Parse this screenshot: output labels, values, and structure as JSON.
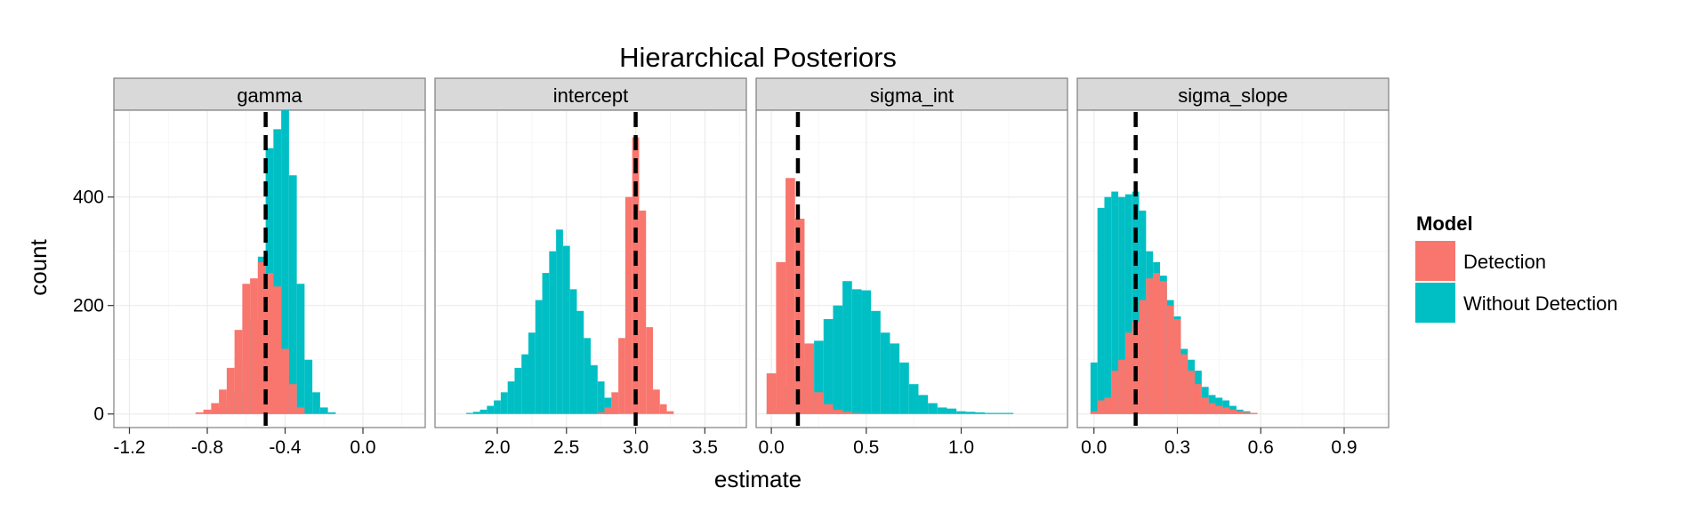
{
  "colors": {
    "detection": "#F8766D",
    "without_detection": "#00BFC4",
    "vline": "#000000",
    "strip": "#d9d9d9"
  },
  "chart_data": {
    "type": "bar",
    "subtype": "faceted-histogram",
    "title": "Hierarchical Posteriors",
    "xlabel": "estimate",
    "ylabel": "count",
    "ylim": [
      -25,
      560
    ],
    "yticks": [
      0,
      200,
      400
    ],
    "grid": true,
    "legend": {
      "title": "Model",
      "position": "right",
      "entries": [
        "Detection",
        "Without Detection"
      ]
    },
    "facets": [
      {
        "label": "gamma",
        "xlim": [
          -1.28,
          0.32
        ],
        "xticks": [
          -1.2,
          -0.8,
          -0.4,
          0.0
        ],
        "xtick_labels": [
          "-1.2",
          "-0.8",
          "-0.4",
          "0.0"
        ],
        "vline": -0.5,
        "series": [
          {
            "name": "Without Detection",
            "x": [
              -0.8,
              -0.76,
              -0.72,
              -0.68,
              -0.64,
              -0.6,
              -0.56,
              -0.52,
              -0.48,
              -0.44,
              -0.4,
              -0.36,
              -0.32,
              -0.28,
              -0.24,
              -0.2,
              -0.16
            ],
            "values": [
              2,
              5,
              10,
              25,
              40,
              95,
              175,
              290,
              490,
              525,
              560,
              440,
              240,
              100,
              40,
              12,
              3
            ]
          },
          {
            "name": "Detection",
            "x": [
              -0.84,
              -0.8,
              -0.76,
              -0.72,
              -0.68,
              -0.64,
              -0.6,
              -0.56,
              -0.52,
              -0.48,
              -0.44,
              -0.4,
              -0.36,
              -0.32
            ],
            "values": [
              3,
              8,
              20,
              45,
              85,
              155,
              240,
              250,
              280,
              260,
              235,
              120,
              55,
              12
            ]
          }
        ]
      },
      {
        "label": "intercept",
        "xlim": [
          1.55,
          3.8
        ],
        "xticks": [
          2.0,
          2.5,
          3.0,
          3.5
        ],
        "xtick_labels": [
          "2.0",
          "2.5",
          "3.0",
          "3.5"
        ],
        "vline": 3.0,
        "series": [
          {
            "name": "Without Detection",
            "x": [
              1.8,
              1.85,
              1.9,
              1.95,
              2.0,
              2.05,
              2.1,
              2.15,
              2.2,
              2.25,
              2.3,
              2.35,
              2.4,
              2.45,
              2.5,
              2.55,
              2.6,
              2.65,
              2.7,
              2.75,
              2.8,
              2.85
            ],
            "values": [
              2,
              4,
              8,
              15,
              25,
              40,
              60,
              85,
              110,
              150,
              210,
              260,
              300,
              340,
              310,
              230,
              190,
              140,
              90,
              60,
              30,
              12
            ]
          },
          {
            "name": "Detection",
            "x": [
              2.75,
              2.8,
              2.85,
              2.9,
              2.95,
              3.0,
              3.05,
              3.1,
              3.15,
              3.2,
              3.25
            ],
            "values": [
              3,
              12,
              40,
              140,
              400,
              510,
              375,
              160,
              45,
              18,
              5
            ]
          }
        ]
      },
      {
        "label": "sigma_int",
        "xlim": [
          -0.08,
          1.56
        ],
        "xticks": [
          0.0,
          0.5,
          1.0
        ],
        "xtick_labels": [
          "0.0",
          "0.5",
          "1.0"
        ],
        "vline": 0.14,
        "series": [
          {
            "name": "Without Detection",
            "x": [
              0.0,
              0.05,
              0.1,
              0.15,
              0.2,
              0.25,
              0.3,
              0.35,
              0.4,
              0.45,
              0.5,
              0.55,
              0.6,
              0.65,
              0.7,
              0.75,
              0.8,
              0.85,
              0.9,
              0.95,
              1.0,
              1.05,
              1.1,
              1.15,
              1.2,
              1.25
            ],
            "values": [
              5,
              20,
              50,
              85,
              110,
              135,
              175,
              200,
              245,
              230,
              228,
              190,
              150,
              130,
              95,
              55,
              35,
              20,
              12,
              10,
              5,
              4,
              3,
              2,
              2,
              2
            ]
          },
          {
            "name": "Detection",
            "x": [
              0.0,
              0.05,
              0.1,
              0.15,
              0.2,
              0.25,
              0.3,
              0.35,
              0.4,
              0.45,
              0.5,
              0.55
            ],
            "values": [
              75,
              280,
              435,
              360,
              130,
              40,
              18,
              8,
              4,
              2,
              1,
              1
            ]
          }
        ]
      },
      {
        "label": "sigma_slope",
        "xlim": [
          -0.06,
          1.06
        ],
        "xticks": [
          0.0,
          0.3,
          0.6,
          0.9
        ],
        "xtick_labels": [
          "0.0",
          "0.3",
          "0.6",
          "0.9"
        ],
        "vline": 0.15,
        "series": [
          {
            "name": "Without Detection",
            "x": [
              0.0,
              0.025,
              0.05,
              0.075,
              0.1,
              0.125,
              0.15,
              0.175,
              0.2,
              0.225,
              0.25,
              0.275,
              0.3,
              0.325,
              0.35,
              0.375,
              0.4,
              0.425,
              0.45,
              0.475,
              0.5,
              0.525,
              0.55,
              0.575
            ],
            "values": [
              95,
              380,
              400,
              410,
              400,
              405,
              410,
              375,
              300,
              280,
              255,
              210,
              180,
              120,
              100,
              80,
              50,
              35,
              30,
              25,
              15,
              8,
              5,
              2
            ]
          },
          {
            "name": "Detection",
            "x": [
              0.0,
              0.025,
              0.05,
              0.075,
              0.1,
              0.125,
              0.15,
              0.175,
              0.2,
              0.225,
              0.25,
              0.275,
              0.3,
              0.325,
              0.35,
              0.375,
              0.4,
              0.425,
              0.45,
              0.475,
              0.5,
              0.525,
              0.55,
              0.575
            ],
            "values": [
              5,
              25,
              30,
              80,
              100,
              150,
              170,
              210,
              250,
              260,
              245,
              200,
              175,
              110,
              80,
              55,
              30,
              20,
              15,
              12,
              8,
              5,
              3,
              2
            ]
          }
        ]
      }
    ]
  }
}
